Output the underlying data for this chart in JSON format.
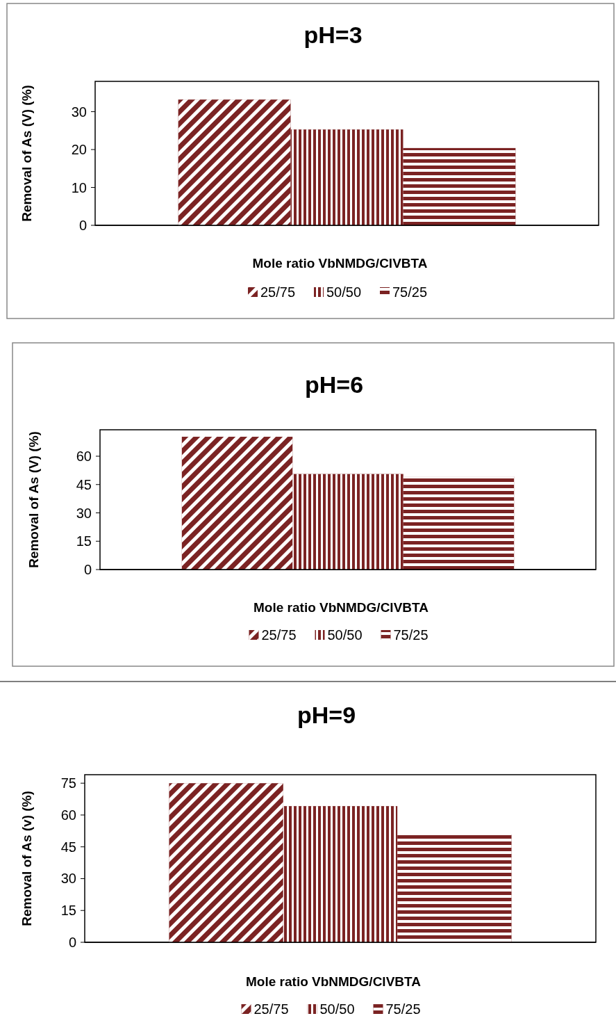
{
  "chart_data": [
    {
      "type": "bar",
      "title": "pH=3",
      "xlabel": "Mole ratio VbNMDG/ClVBTA",
      "ylabel": "Removal of As (V) (%)",
      "categories": [
        null
      ],
      "ylim": [
        0,
        38
      ],
      "yticks": [
        0,
        10,
        20,
        30
      ],
      "legend": "bottom",
      "grid": false,
      "series": [
        {
          "name": "25/75",
          "color": "#7b2323",
          "values": [
            33.2
          ]
        },
        {
          "name": "50/50",
          "color": "#7b2323",
          "values": [
            25.3
          ]
        },
        {
          "name": "75/25",
          "color": "#7b2323",
          "values": [
            20.4
          ]
        }
      ]
    },
    {
      "type": "bar",
      "title": "pH=6",
      "xlabel": "Mole ratio VbNMDG/ClVBTA",
      "ylabel": "Removal of As (V) (%)",
      "categories": [
        null
      ],
      "ylim": [
        0,
        74
      ],
      "yticks": [
        0,
        15,
        30,
        45,
        60
      ],
      "legend": "bottom",
      "grid": false,
      "series": [
        {
          "name": "25/75",
          "color": "#7b2323",
          "values": [
            70.3
          ]
        },
        {
          "name": "50/50",
          "color": "#7b2323",
          "values": [
            50.6
          ]
        },
        {
          "name": "75/25",
          "color": "#7b2323",
          "values": [
            49.3
          ]
        }
      ]
    },
    {
      "type": "bar",
      "title": "pH=9",
      "xlabel": "Mole ratio VbNMDG/ClVBTA",
      "ylabel": "Removal of As (v) (%)",
      "categories": [
        null
      ],
      "ylim": [
        0,
        79
      ],
      "yticks": [
        0,
        15,
        30,
        45,
        60,
        75
      ],
      "legend": "bottom",
      "grid": false,
      "series": [
        {
          "name": "25/75",
          "color": "#7b2323",
          "values": [
            75
          ]
        },
        {
          "name": "50/50",
          "color": "#7b2323",
          "values": [
            64.2
          ]
        },
        {
          "name": "75/25",
          "color": "#7b2323",
          "values": [
            50.8
          ]
        }
      ]
    }
  ]
}
